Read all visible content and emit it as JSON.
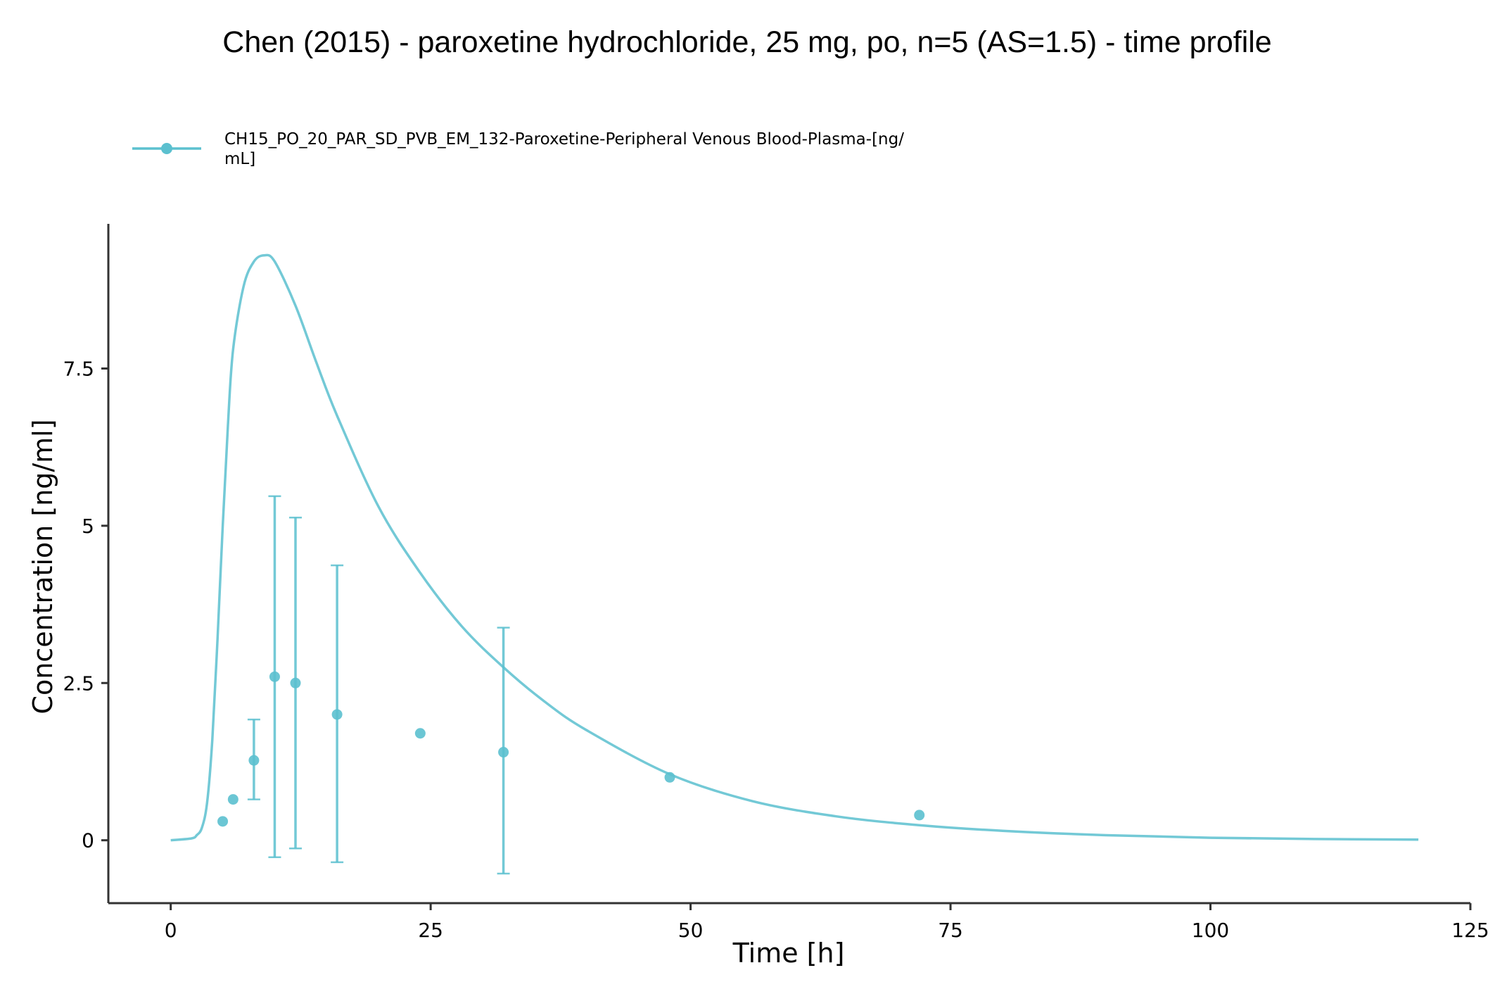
{
  "chart_data": {
    "type": "line",
    "title": "Chen (2015) - paroxetine hydrochloride, 25 mg, po, n=5 (AS=1.5) - time profile",
    "xlabel": "Time [h]",
    "ylabel": "Concentration [ng/ml]",
    "xlim": [
      -6,
      125
    ],
    "ylim": [
      -1,
      9.8
    ],
    "x_ticks": [
      0,
      25,
      50,
      75,
      100,
      125
    ],
    "y_ticks": [
      0,
      2.5,
      5,
      7.5
    ],
    "x_tick_labels": [
      "0",
      "25",
      "50",
      "75",
      "100",
      "125"
    ],
    "y_tick_labels": [
      "0",
      "2.5",
      "5",
      "7.5"
    ],
    "grid": false,
    "legend_position": "top-left",
    "color": "#5BC0CF",
    "legend_lines": [
      "CH15_PO_20_PAR_SD_PVB_EM_132-Paroxetine-Peripheral Venous Blood-Plasma-[ng/",
      "mL]"
    ],
    "simulated_curve": {
      "x": [
        0,
        2,
        2.5,
        3,
        3.5,
        4,
        4.5,
        5,
        5.5,
        6,
        7,
        8,
        9,
        10,
        12,
        14,
        16,
        20,
        24,
        28,
        32,
        36,
        40,
        48,
        56,
        64,
        72,
        80,
        90,
        100,
        110,
        120
      ],
      "y": [
        0,
        0.03,
        0.08,
        0.2,
        0.6,
        1.6,
        3.2,
        5.0,
        6.6,
        7.8,
        8.8,
        9.2,
        9.3,
        9.2,
        8.5,
        7.6,
        6.75,
        5.3,
        4.25,
        3.4,
        2.75,
        2.2,
        1.75,
        1.05,
        0.62,
        0.38,
        0.24,
        0.15,
        0.08,
        0.04,
        0.02,
        0.01
      ]
    },
    "observed": [
      {
        "x": 5,
        "y": 0.3
      },
      {
        "x": 6,
        "y": 0.65
      },
      {
        "x": 8,
        "y": 1.27,
        "err_low": 0.65,
        "err_high": 1.92
      },
      {
        "x": 10,
        "y": 2.6,
        "err_low": -0.27,
        "err_high": 5.47
      },
      {
        "x": 12,
        "y": 2.5,
        "err_low": -0.13,
        "err_high": 5.13
      },
      {
        "x": 16,
        "y": 2.0,
        "err_low": -0.35,
        "err_high": 4.37
      },
      {
        "x": 24,
        "y": 1.7
      },
      {
        "x": 32,
        "y": 1.4,
        "err_low": -0.53,
        "err_high": 3.38
      },
      {
        "x": 48,
        "y": 1.0
      },
      {
        "x": 72,
        "y": 0.4
      }
    ]
  }
}
